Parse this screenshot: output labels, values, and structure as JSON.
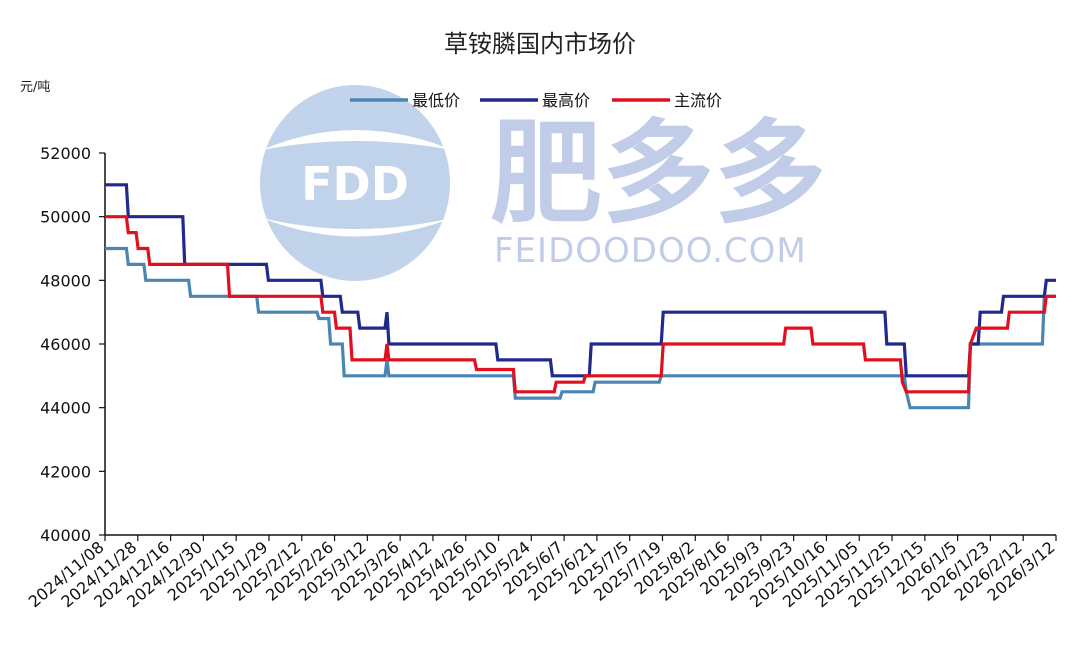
{
  "chart_data": {
    "type": "line",
    "title": "草铵膦国内市场价",
    "ylabel": "元/吨",
    "xlabel": "",
    "ylim": [
      40000,
      52000
    ],
    "yticks": [
      40000,
      42000,
      44000,
      46000,
      48000,
      50000,
      52000
    ],
    "xlim": [
      "2024-11-08",
      "2026-03-12"
    ],
    "xtick_labels": [
      "2024/11/08",
      "2024/11/28",
      "2024/12/16",
      "2024/12/30",
      "2025/1/15",
      "2025/1/29",
      "2025/2/12",
      "2025/2/26",
      "2025/3/12",
      "2025/3/26",
      "2025/4/12",
      "2025/4/26",
      "2025/5/10",
      "2025/5/24",
      "2025/6/7",
      "2025/6/21",
      "2025/7/5",
      "2025/7/19",
      "2025/8/2",
      "2025/8/16",
      "2025/9/3",
      "2025/9/23",
      "2025/10/16",
      "2025/11/05",
      "2025/11/25",
      "2025/12/15",
      "2026/1/5",
      "2026/1/23",
      "2026/2/12",
      "2026/3/12"
    ],
    "grid": false,
    "legend_position": "top",
    "series": [
      {
        "name": "最低价",
        "color": "#4a86b4",
        "points": [
          [
            "2024-11-08",
            49000
          ],
          [
            "2024-11-19",
            49000
          ],
          [
            "2024-11-20",
            48500
          ],
          [
            "2024-11-28",
            48500
          ],
          [
            "2024-11-29",
            48000
          ],
          [
            "2024-12-21",
            48000
          ],
          [
            "2024-12-22",
            47500
          ],
          [
            "2025-01-25",
            47500
          ],
          [
            "2025-01-26",
            47000
          ],
          [
            "2025-02-25",
            47000
          ],
          [
            "2025-02-26",
            46800
          ],
          [
            "2025-03-03",
            46800
          ],
          [
            "2025-03-04",
            46000
          ],
          [
            "2025-03-10",
            46000
          ],
          [
            "2025-03-11",
            45000
          ],
          [
            "2025-04-01",
            45000
          ],
          [
            "2025-04-02",
            45500
          ],
          [
            "2025-04-03",
            45000
          ],
          [
            "2025-06-06",
            45000
          ],
          [
            "2025-06-07",
            44300
          ],
          [
            "2025-06-30",
            44300
          ],
          [
            "2025-07-01",
            44500
          ],
          [
            "2025-07-17",
            44500
          ],
          [
            "2025-07-18",
            44800
          ],
          [
            "2025-08-20",
            44800
          ],
          [
            "2025-08-21",
            45000
          ],
          [
            "2025-12-24",
            45000
          ],
          [
            "2025-12-25",
            44500
          ],
          [
            "2025-12-27",
            44000
          ],
          [
            "2026-01-26",
            44000
          ],
          [
            "2026-01-27",
            46000
          ],
          [
            "2026-03-05",
            46000
          ],
          [
            "2026-03-06",
            47500
          ],
          [
            "2026-03-12",
            47500
          ]
        ]
      },
      {
        "name": "最高价",
        "color": "#1f2a8c",
        "points": [
          [
            "2024-11-08",
            51000
          ],
          [
            "2024-11-19",
            51000
          ],
          [
            "2024-11-20",
            50000
          ],
          [
            "2024-12-18",
            50000
          ],
          [
            "2024-12-19",
            48500
          ],
          [
            "2025-01-30",
            48500
          ],
          [
            "2025-01-31",
            48000
          ],
          [
            "2025-02-27",
            48000
          ],
          [
            "2025-02-28",
            47500
          ],
          [
            "2025-03-09",
            47500
          ],
          [
            "2025-03-10",
            47000
          ],
          [
            "2025-03-18",
            47000
          ],
          [
            "2025-03-19",
            46500
          ],
          [
            "2025-04-01",
            46500
          ],
          [
            "2025-04-02",
            47000
          ],
          [
            "2025-04-03",
            46000
          ],
          [
            "2025-05-28",
            46000
          ],
          [
            "2025-05-29",
            45500
          ],
          [
            "2025-06-25",
            45500
          ],
          [
            "2025-06-26",
            45000
          ],
          [
            "2025-07-15",
            45000
          ],
          [
            "2025-07-16",
            46000
          ],
          [
            "2025-08-21",
            46000
          ],
          [
            "2025-08-22",
            47000
          ],
          [
            "2025-12-14",
            47000
          ],
          [
            "2025-12-15",
            46000
          ],
          [
            "2025-12-24",
            46000
          ],
          [
            "2025-12-25",
            45000
          ],
          [
            "2026-01-26",
            45000
          ],
          [
            "2026-01-27",
            46000
          ],
          [
            "2026-01-31",
            46000
          ],
          [
            "2026-02-01",
            47000
          ],
          [
            "2026-02-12",
            47000
          ],
          [
            "2026-02-13",
            47500
          ],
          [
            "2026-03-06",
            47500
          ],
          [
            "2026-03-07",
            48000
          ],
          [
            "2026-03-12",
            48000
          ]
        ]
      },
      {
        "name": "主流价",
        "color": "#e0101e",
        "points": [
          [
            "2024-11-08",
            50000
          ],
          [
            "2024-11-19",
            50000
          ],
          [
            "2024-11-20",
            49500
          ],
          [
            "2024-11-24",
            49500
          ],
          [
            "2024-11-25",
            49000
          ],
          [
            "2024-11-30",
            49000
          ],
          [
            "2024-12-01",
            48500
          ],
          [
            "2025-01-10",
            48500
          ],
          [
            "2025-01-11",
            47500
          ],
          [
            "2025-02-27",
            47500
          ],
          [
            "2025-02-28",
            47000
          ],
          [
            "2025-03-06",
            47000
          ],
          [
            "2025-03-07",
            46500
          ],
          [
            "2025-03-14",
            46500
          ],
          [
            "2025-03-15",
            45500
          ],
          [
            "2025-04-01",
            45500
          ],
          [
            "2025-04-02",
            46000
          ],
          [
            "2025-04-03",
            45500
          ],
          [
            "2025-05-17",
            45500
          ],
          [
            "2025-05-18",
            45200
          ],
          [
            "2025-06-06",
            45200
          ],
          [
            "2025-06-07",
            44500
          ],
          [
            "2025-06-27",
            44500
          ],
          [
            "2025-06-28",
            44800
          ],
          [
            "2025-07-12",
            44800
          ],
          [
            "2025-07-13",
            45000
          ],
          [
            "2025-08-21",
            45000
          ],
          [
            "2025-08-22",
            46000
          ],
          [
            "2025-10-23",
            46000
          ],
          [
            "2025-10-24",
            46500
          ],
          [
            "2025-11-06",
            46500
          ],
          [
            "2025-11-07",
            46000
          ],
          [
            "2025-12-03",
            46000
          ],
          [
            "2025-12-04",
            45500
          ],
          [
            "2025-12-22",
            45500
          ],
          [
            "2025-12-23",
            44800
          ],
          [
            "2025-12-25",
            44500
          ],
          [
            "2026-01-26",
            44500
          ],
          [
            "2026-01-27",
            46000
          ],
          [
            "2026-01-30",
            46500
          ],
          [
            "2026-02-15",
            46500
          ],
          [
            "2026-02-16",
            47000
          ],
          [
            "2026-03-06",
            47000
          ],
          [
            "2026-03-07",
            47500
          ],
          [
            "2026-03-12",
            47500
          ]
        ]
      }
    ]
  },
  "watermark": {
    "logo_text": "FDD",
    "brand": "肥多多",
    "url": "FEIDOODOO.COM",
    "logo_color": "#8fb0da"
  }
}
